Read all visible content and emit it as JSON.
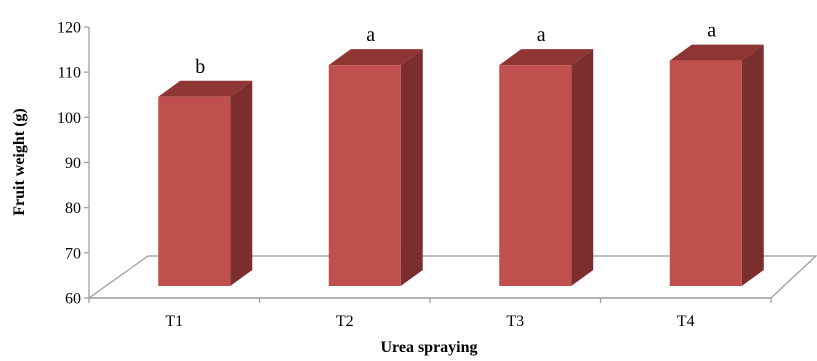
{
  "chart_data": {
    "type": "bar",
    "style": "3d-column",
    "categories": [
      "T1",
      "T2",
      "T3",
      "T4"
    ],
    "values": [
      105,
      112,
      112,
      113
    ],
    "data_labels": [
      "b",
      "a",
      "a",
      "a"
    ],
    "xlabel": "Urea spraying",
    "ylabel": "Fruit weight (g)",
    "ylim": [
      60,
      120
    ],
    "yticks": [
      "60",
      "70",
      "80",
      "90",
      "100",
      "110",
      "120"
    ],
    "grid": false,
    "legend": "none",
    "colors": {
      "front": "#c0504d",
      "side": "#7b2e2d",
      "top": "#8f3533",
      "floor": "#ffffff",
      "axis": "#9a9a9a"
    }
  }
}
